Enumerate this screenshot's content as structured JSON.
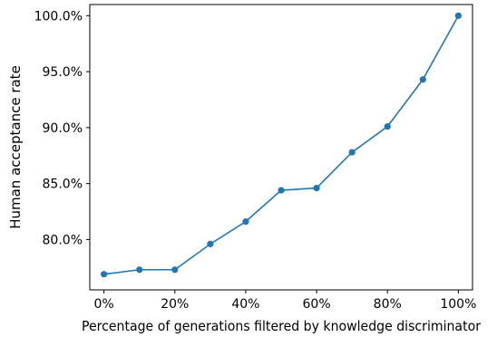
{
  "chart_data": {
    "type": "line",
    "title": "",
    "xlabel": "Percentage of generations filtered by knowledge discriminator",
    "ylabel": "Human acceptance rate",
    "xlim": [
      -4,
      104
    ],
    "ylim": [
      75.5,
      101.0
    ],
    "x_ticks": [
      0,
      20,
      40,
      60,
      80,
      100
    ],
    "x_tick_labels": [
      "0%",
      "20%",
      "40%",
      "60%",
      "80%",
      "100%"
    ],
    "y_ticks": [
      80,
      85,
      90,
      95,
      100
    ],
    "y_tick_labels": [
      "80.0%",
      "85.0%",
      "90.0%",
      "95.0%",
      "100.0%"
    ],
    "grid": false,
    "legend": false,
    "series": [
      {
        "x": [
          0,
          10,
          20,
          30,
          40,
          50,
          60,
          70,
          80,
          90,
          100
        ],
        "y": [
          76.9,
          77.3,
          77.3,
          79.6,
          81.6,
          84.4,
          84.6,
          87.8,
          90.1,
          94.3,
          100.0
        ],
        "color": "#1f77b4",
        "marker": "circle"
      }
    ]
  }
}
